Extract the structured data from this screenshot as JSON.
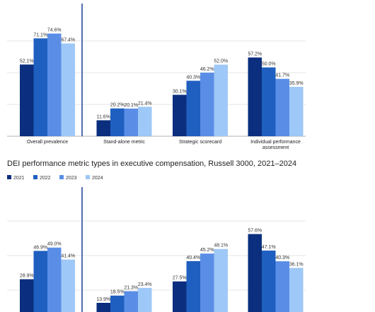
{
  "colors": [
    "#0b2f7e",
    "#1f5fc0",
    "#5a8ee6",
    "#9ec8f7"
  ],
  "divider_color": "#1a3f9b",
  "legend": [
    "2021",
    "2022",
    "2023",
    "2024"
  ],
  "chart_data": [
    {
      "type": "bar",
      "title": "",
      "categories": [
        "Overall prevalence",
        "Stand-alone metric",
        "Strategic scorecard",
        "Individual performance assessment"
      ],
      "category_lines": [
        [
          "Overall prevalence"
        ],
        [
          "Stand-alone metric"
        ],
        [
          "Strategic scorecard"
        ],
        [
          "Individual performance",
          "assessment"
        ]
      ],
      "series": [
        {
          "name": "2021",
          "values": [
            52.1,
            11.6,
            30.1,
            57.2
          ]
        },
        {
          "name": "2022",
          "values": [
            71.1,
            20.2,
            40.3,
            50.0
          ]
        },
        {
          "name": "2023",
          "values": [
            74.6,
            20.1,
            46.2,
            41.7
          ]
        },
        {
          "name": "2024",
          "values": [
            67.4,
            21.4,
            52.0,
            35.9
          ]
        }
      ],
      "grid": true,
      "ylim": [
        0,
        80
      ]
    },
    {
      "type": "bar",
      "title": "DEI performance metric types in executive compensation, Russell 3000, 2021–2024",
      "legend_position": "top-left",
      "series": [
        {
          "name": "2021",
          "values": [
            28.9,
            13.9,
            27.5,
            57.6
          ]
        },
        {
          "name": "2022",
          "values": [
            46.9,
            18.5,
            40.4,
            47.1
          ]
        },
        {
          "name": "2023",
          "values": [
            49.0,
            21.3,
            45.2,
            40.3
          ]
        },
        {
          "name": "2024",
          "values": [
            41.4,
            23.4,
            48.1,
            36.1
          ]
        }
      ],
      "grid": true,
      "ylim": [
        0,
        80
      ]
    }
  ]
}
